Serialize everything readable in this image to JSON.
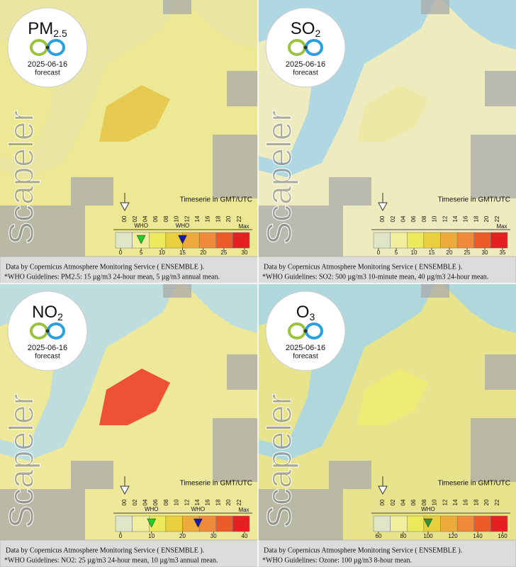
{
  "panels": [
    {
      "pollutant": "PM",
      "subscript": "2.5",
      "date": "2025-06-16",
      "forecast": "forecast",
      "watermark": "Scapeler",
      "timeserie": "Timeserie in GMT/UTC",
      "hours": [
        "00",
        "02",
        "04",
        "06",
        "08",
        "10",
        "12",
        "14",
        "16",
        "18",
        "20",
        "22"
      ],
      "scale": [
        0,
        5,
        10,
        15,
        20,
        25,
        30
      ],
      "max": "Max",
      "who": [
        {
          "label": "WHO",
          "value": 5,
          "color": "#22cc22"
        },
        {
          "label": "WHO",
          "value": 15,
          "color": "#1a1aa8"
        }
      ],
      "credit": "Data by Copernicus Atmosphere Monitoring Service ( ENSEMBLE ).",
      "guideline": "*WHO Guidelines: PM2.5: 15 µg/m3 24-hour mean, 5 µg/m3 annual mean."
    },
    {
      "pollutant": "SO",
      "subscript": "2",
      "date": "2025-06-16",
      "forecast": "forecast",
      "watermark": "Scapeler",
      "timeserie": "Timeserie in GMT/UTC",
      "hours": [
        "00",
        "02",
        "04",
        "06",
        "08",
        "10",
        "12",
        "14",
        "16",
        "18",
        "20",
        "22"
      ],
      "scale": [
        0,
        5,
        10,
        15,
        20,
        25,
        30,
        35
      ],
      "max": "Max",
      "who": [],
      "credit": "Data by Copernicus Atmosphere Monitoring Service ( ENSEMBLE ).",
      "guideline": "*WHO Guidelines: SO2: 500 µg/m3 10-minute mean, 40 µg/m3 24-hour mean."
    },
    {
      "pollutant": "NO",
      "subscript": "2",
      "date": "2025-06-16",
      "forecast": "forecast",
      "watermark": "Scapeler",
      "timeserie": "Timeserie in GMT/UTC",
      "hours": [
        "00",
        "02",
        "04",
        "06",
        "08",
        "10",
        "12",
        "14",
        "16",
        "18",
        "20",
        "22"
      ],
      "scale": [
        0,
        10,
        20,
        30,
        40
      ],
      "max": "Max",
      "who": [
        {
          "label": "WHO",
          "value": 10,
          "color": "#22cc22"
        },
        {
          "label": "WHO",
          "value": 25,
          "color": "#1a1aa8"
        }
      ],
      "credit": "Data by Copernicus Atmosphere Monitoring Service ( ENSEMBLE ).",
      "guideline": "*WHO Guidelines: NO2: 25 µg/m3 24-hour mean, 10 µg/m3 annual mean."
    },
    {
      "pollutant": "O",
      "subscript": "3",
      "date": "2025-06-16",
      "forecast": "forecast",
      "watermark": "Scapeler",
      "timeserie": "Timeserie in GMT/UTC",
      "hours": [
        "00",
        "02",
        "04",
        "06",
        "08",
        "10",
        "12",
        "14",
        "16",
        "18",
        "20",
        "22"
      ],
      "scale": [
        60,
        80,
        100,
        120,
        140,
        160
      ],
      "who": [
        {
          "label": "WHO",
          "value": 100,
          "color": "#2a9a2a"
        }
      ],
      "credit": "Data by Copernicus Atmosphere Monitoring Service ( ENSEMBLE ).",
      "guideline": "*WHO Guidelines: Ozone: 100 µg/m3 8-hour mean."
    }
  ]
}
